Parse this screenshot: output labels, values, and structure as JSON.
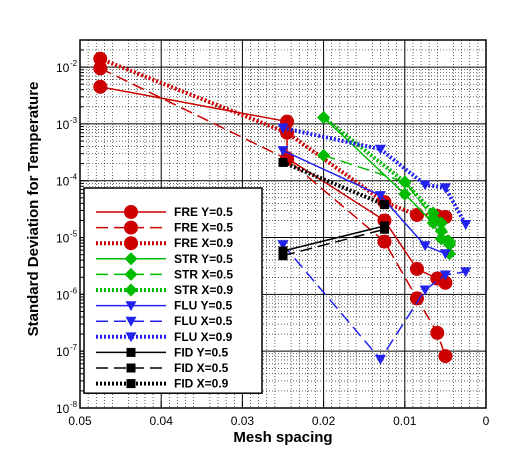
{
  "chart_data": {
    "type": "line",
    "xlabel": "Mesh spacing",
    "ylabel": "Standard Deviation for Temperature",
    "x_reversed": true,
    "xlim": [
      0,
      0.05
    ],
    "y_scale": "log",
    "ylim": [
      1e-08,
      0.03
    ],
    "x_ticks": [
      {
        "value": 0.05,
        "label": "0.05"
      },
      {
        "value": 0.04,
        "label": "0.04"
      },
      {
        "value": 0.03,
        "label": "0.03"
      },
      {
        "value": 0.02,
        "label": "0.02"
      },
      {
        "value": 0.01,
        "label": "0.01"
      },
      {
        "value": 0,
        "label": "0"
      }
    ],
    "y_ticks": [
      {
        "value": 1e-08,
        "base": "10",
        "exp": "-8"
      },
      {
        "value": 1e-07,
        "base": "10",
        "exp": "-7"
      },
      {
        "value": 1e-06,
        "base": "10",
        "exp": "-6"
      },
      {
        "value": 1e-05,
        "base": "10",
        "exp": "-5"
      },
      {
        "value": 0.0001,
        "base": "10",
        "exp": "-4"
      },
      {
        "value": 0.001,
        "base": "10",
        "exp": "-3"
      },
      {
        "value": 0.01,
        "base": "10",
        "exp": "-2"
      }
    ],
    "grid": true,
    "legend_position": "bottom-left",
    "series": [
      {
        "name": "FRE Y=0.5",
        "color": "#cc0000",
        "marker": "circle",
        "dash": "solid",
        "points": [
          [
            0.0475,
            0.0045
          ],
          [
            0.0245,
            0.0011
          ],
          [
            0.0245,
            0.00025
          ],
          [
            0.0125,
            2e-05
          ],
          [
            0.0085,
            2.8e-06
          ],
          [
            0.006,
            1.9e-06
          ],
          [
            0.005,
            1.6e-06
          ]
        ]
      },
      {
        "name": "FRE X=0.5",
        "color": "#cc0000",
        "marker": "circle",
        "dash": "dashed",
        "points": [
          [
            0.0475,
            0.0095
          ],
          [
            0.0245,
            0.00024
          ],
          [
            0.0125,
            8.5e-06
          ],
          [
            0.0085,
            8.5e-07
          ],
          [
            0.006,
            2.1e-07
          ],
          [
            0.005,
            8.2e-08
          ]
        ]
      },
      {
        "name": "FRE X=0.9",
        "color": "#cc0000",
        "marker": "circle",
        "dash": "dotted",
        "points": [
          [
            0.0475,
            0.014
          ],
          [
            0.0245,
            0.0007
          ],
          [
            0.0125,
            4.2e-05
          ],
          [
            0.0085,
            2.5e-05
          ],
          [
            0.006,
            2.4e-05
          ],
          [
            0.005,
            2.3e-05
          ]
        ]
      },
      {
        "name": "STR Y=0.5",
        "color": "#00bb00",
        "marker": "diamond",
        "dash": "solid",
        "points": [
          [
            0.02,
            0.0013
          ],
          [
            0.01,
            5.8e-05
          ],
          [
            0.0065,
            1.8e-05
          ],
          [
            0.0055,
            9.5e-06
          ],
          [
            0.0045,
            7.5e-06
          ]
        ]
      },
      {
        "name": "STR X=0.5",
        "color": "#00bb00",
        "marker": "diamond",
        "dash": "dashed",
        "points": [
          [
            0.02,
            0.00028
          ],
          [
            0.01,
            9.5e-05
          ],
          [
            0.0065,
            2.2e-05
          ],
          [
            0.0055,
            1.3e-05
          ],
          [
            0.0045,
            5.2e-06
          ]
        ]
      },
      {
        "name": "STR X=0.9",
        "color": "#00bb00",
        "marker": "diamond",
        "dash": "dotted",
        "points": [
          [
            0.02,
            0.0013
          ],
          [
            0.01,
            9.5e-05
          ],
          [
            0.0065,
            2.7e-05
          ],
          [
            0.0055,
            1.8e-05
          ],
          [
            0.0045,
            8.5e-06
          ]
        ]
      },
      {
        "name": "FLU Y=0.5",
        "color": "#2222ee",
        "marker": "triangle-down",
        "dash": "solid",
        "points": [
          [
            0.025,
            0.00034
          ],
          [
            0.013,
            5.5e-05
          ],
          [
            0.0075,
            7.2e-06
          ],
          [
            0.005,
            5.2e-06
          ]
        ]
      },
      {
        "name": "FLU X=0.5",
        "color": "#2222ee",
        "marker": "triangle-down",
        "dash": "dashed",
        "points": [
          [
            0.025,
            7.5e-06
          ],
          [
            0.013,
            7.2e-08
          ],
          [
            0.0075,
            1.2e-06
          ],
          [
            0.005,
            2.2e-06
          ],
          [
            0.0025,
            2.5e-06
          ]
        ]
      },
      {
        "name": "FLU X=0.9",
        "color": "#2222ee",
        "marker": "triangle-down",
        "dash": "dotted",
        "points": [
          [
            0.025,
            0.00085
          ],
          [
            0.013,
            0.00036
          ],
          [
            0.0075,
            8.5e-05
          ],
          [
            0.005,
            7.5e-05
          ],
          [
            0.0025,
            1.7e-05
          ]
        ]
      },
      {
        "name": "FID Y=0.5",
        "color": "#000000",
        "marker": "square",
        "dash": "solid",
        "points": [
          [
            0.025,
            5.8e-06
          ],
          [
            0.0125,
            1.6e-05
          ]
        ]
      },
      {
        "name": "FID X=0.5",
        "color": "#000000",
        "marker": "square",
        "dash": "dashed",
        "points": [
          [
            0.025,
            4.8e-06
          ],
          [
            0.0125,
            1.4e-05
          ]
        ]
      },
      {
        "name": "FID X=0.9",
        "color": "#000000",
        "marker": "square",
        "dash": "dotted",
        "points": [
          [
            0.025,
            0.00021
          ],
          [
            0.0125,
            3.8e-05
          ]
        ]
      }
    ]
  }
}
